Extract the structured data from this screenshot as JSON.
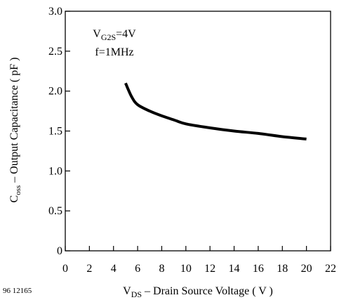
{
  "figure_id": "96 12165",
  "annotation": {
    "line1_main": "V",
    "line1_sub": "G2S",
    "line1_rest": "=4V",
    "line2": "f=1MHz"
  },
  "chart_data": {
    "type": "line",
    "xlabel_main": "V",
    "xlabel_sub": "DS",
    "xlabel_rest": " – Drain Source Voltage ( V )",
    "ylabel_main": "C",
    "ylabel_sub": "oss",
    "ylabel_rest": " – Output Capacitance ( pF )",
    "xlim": [
      0,
      22
    ],
    "ylim": [
      0,
      3.0
    ],
    "xticks": [
      0,
      2,
      4,
      6,
      8,
      10,
      12,
      14,
      16,
      18,
      20,
      22
    ],
    "yticks": [
      0,
      0.5,
      1.0,
      1.5,
      2.0,
      2.5,
      3.0
    ],
    "ytick_labels": [
      "0",
      "0.5",
      "1.0",
      "1.5",
      "2.0",
      "2.5",
      "3.0"
    ],
    "grid": false,
    "series": [
      {
        "x": [
          5.0,
          5.5,
          6.0,
          7.0,
          8.0,
          9.0,
          10.0,
          12.0,
          14.0,
          16.0,
          18.0,
          20.0
        ],
        "y": [
          2.1,
          1.93,
          1.83,
          1.75,
          1.69,
          1.64,
          1.59,
          1.54,
          1.5,
          1.47,
          1.43,
          1.4
        ],
        "color": "#000000"
      }
    ]
  }
}
